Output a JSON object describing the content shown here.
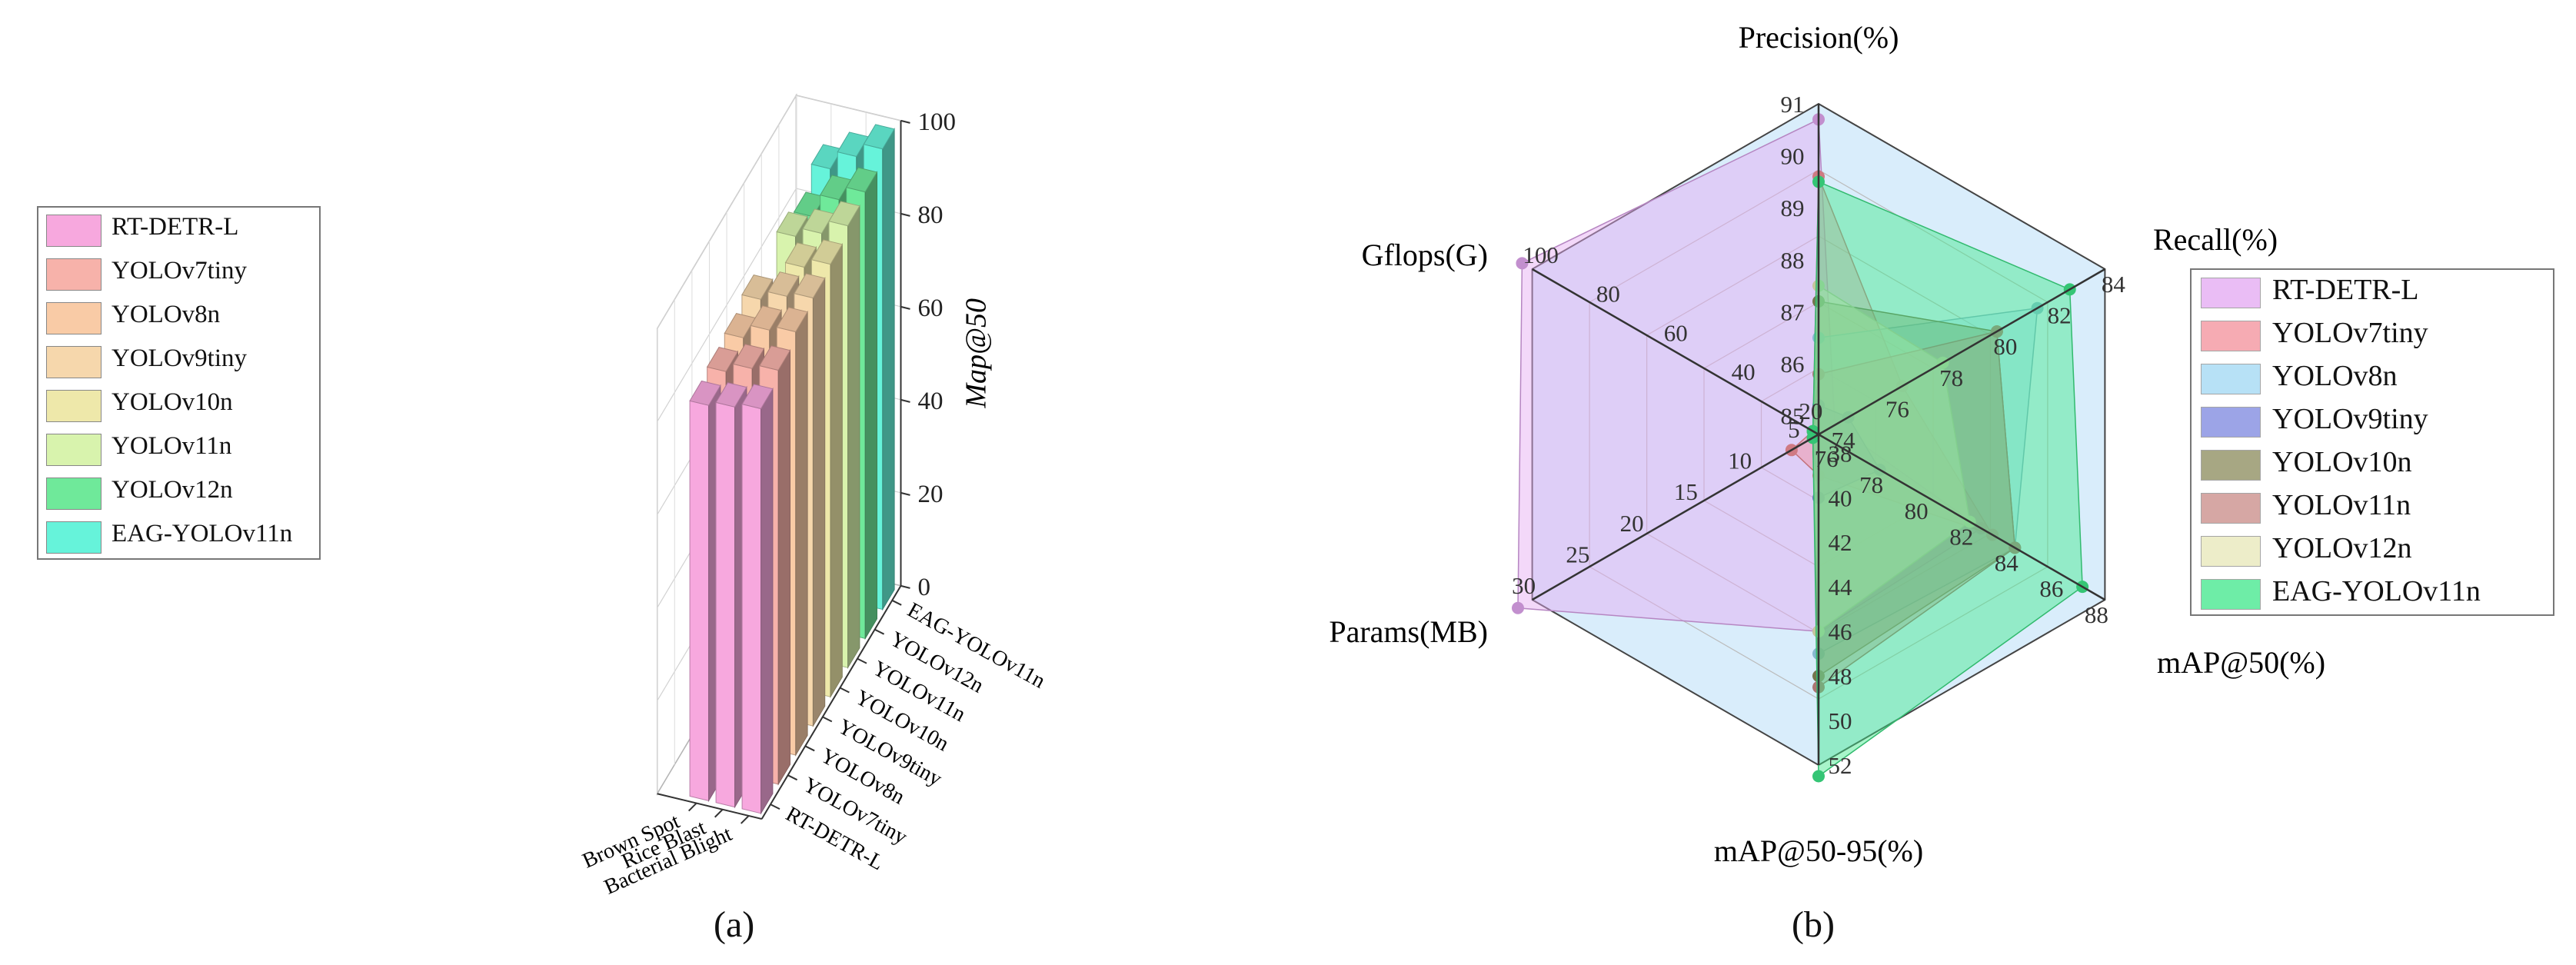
{
  "panel_a": {
    "label": "(a)"
  },
  "panel_b": {
    "label": "(b)"
  },
  "chart_data": [
    {
      "type": "bar",
      "subtype": "3d-bar",
      "title": "",
      "zlabel": "Map@50",
      "zlim": [
        0,
        100
      ],
      "z_ticks": [
        0,
        20,
        40,
        60,
        80,
        100
      ],
      "categories": [
        "Bacterial Blight",
        "Rice Blast",
        "Brown Spot"
      ],
      "series": [
        {
          "name": "RT-DETR-L",
          "color": "#f7a8de",
          "values": [
            87,
            86,
            85
          ]
        },
        {
          "name": "YOLOv7tiny",
          "color": "#f7b2aa",
          "values": [
            89,
            88,
            86
          ]
        },
        {
          "name": "YOLOv8n",
          "color": "#f9cba6",
          "values": [
            91,
            90,
            87
          ]
        },
        {
          "name": "YOLOv9tiny",
          "color": "#f6d7ac",
          "values": [
            92,
            91,
            89
          ]
        },
        {
          "name": "YOLOv10n",
          "color": "#eee8aa",
          "values": [
            93,
            91,
            81
          ]
        },
        {
          "name": "YOLOv11n",
          "color": "#d8f3ad",
          "values": [
            95,
            92,
            90
          ]
        },
        {
          "name": "YOLOv12n",
          "color": "#6fe99a",
          "values": [
            96,
            93,
            88
          ]
        },
        {
          "name": "EAG-YOLOv11n",
          "color": "#66f3da",
          "values": [
            99,
            96,
            92
          ]
        }
      ],
      "legend": [
        "RT-DETR-L",
        "YOLOv7tiny",
        "YOLOv8n",
        "YOLOv9tiny",
        "YOLOv10n",
        "YOLOv11n",
        "YOLOv12n",
        "EAG-YOLOv11n"
      ]
    },
    {
      "type": "radar",
      "title": "",
      "axes": [
        {
          "label": "Precision(%)",
          "ticks": [
            85,
            86,
            87,
            88,
            89,
            90,
            91
          ]
        },
        {
          "label": "Recall(%)",
          "ticks": [
            74,
            76,
            78,
            80,
            82,
            84
          ]
        },
        {
          "label": "mAP@50(%)",
          "ticks": [
            76,
            78,
            80,
            82,
            84,
            86,
            88
          ]
        },
        {
          "label": "mAP@50-95(%)",
          "ticks": [
            38,
            40,
            42,
            44,
            46,
            48,
            50,
            52
          ]
        },
        {
          "label": "Params(MB)",
          "ticks": [
            5,
            10,
            15,
            20,
            25,
            30
          ]
        },
        {
          "label": "Gflops(G)",
          "ticks": [
            20,
            40,
            60,
            80,
            100
          ]
        }
      ],
      "series": [
        {
          "name": "RT-DETR-L",
          "color": "#e4a8f2",
          "values": [
            90.7,
            74,
            82.5,
            46,
            32,
            103
          ]
        },
        {
          "name": "YOLOv7tiny",
          "color": "#f48f9a",
          "values": [
            89.6,
            76.5,
            83,
            39,
            6,
            13
          ]
        },
        {
          "name": "YOLOv8n",
          "color": "#9fd8f4",
          "values": [
            86.5,
            81.5,
            84,
            47,
            3,
            8
          ]
        },
        {
          "name": "YOLOv9tiny",
          "color": "#7c86e0",
          "values": [
            85.2,
            74.5,
            78,
            40,
            2,
            7.5
          ]
        },
        {
          "name": "YOLOv10n",
          "color": "#8a8a5a",
          "values": [
            87.2,
            80,
            84,
            48,
            2.5,
            8
          ]
        },
        {
          "name": "YOLOv11n",
          "color": "#c98a86",
          "values": [
            85.8,
            80,
            84,
            48.5,
            2.6,
            6.5
          ]
        },
        {
          "name": "YOLOv12n",
          "color": "#e8e8b8",
          "values": [
            87.5,
            78,
            82,
            46,
            2.5,
            6
          ]
        },
        {
          "name": "EAG-YOLOv11n",
          "color": "#3ee88a",
          "values": [
            89.5,
            82.7,
            87,
            52.5,
            2.8,
            7
          ]
        }
      ],
      "legend": [
        "RT-DETR-L",
        "YOLOv7tiny",
        "YOLOv8n",
        "YOLOv9tiny",
        "YOLOv10n",
        "YOLOv11n",
        "YOLOv12n",
        "EAG-YOLOv11n"
      ]
    }
  ]
}
